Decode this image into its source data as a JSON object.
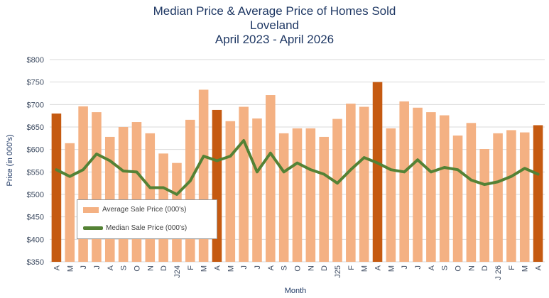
{
  "chart_data": {
    "type": "bar",
    "title": [
      "Median Price & Average Price of Homes Sold",
      "Loveland",
      "April 2023 - April 2026"
    ],
    "xlabel": "Month",
    "ylabel": "Price (in 000's)",
    "ylim": [
      350,
      800
    ],
    "yticks": [
      "$350",
      "$400",
      "$450",
      "$500",
      "$550",
      "$600",
      "$650",
      "$700",
      "$750",
      "$800"
    ],
    "ytick_values": [
      350,
      400,
      450,
      500,
      550,
      600,
      650,
      700,
      750,
      800
    ],
    "grid": true,
    "legend_position": "bottom-left",
    "categories": [
      "A",
      "M",
      "J",
      "J",
      "A",
      "S",
      "O",
      "N",
      "D",
      "J24",
      "F",
      "M",
      "A",
      "M",
      "J",
      "J",
      "A",
      "S",
      "O",
      "N",
      "D",
      "J25",
      "F",
      "M",
      "A",
      "M",
      "J",
      "J",
      "A",
      "S",
      "O",
      "N",
      "D",
      "J 26",
      "F",
      "M",
      "A"
    ],
    "series": [
      {
        "name": "Average Sale Price (000's)",
        "kind": "bar",
        "values": [
          680,
          614,
          696,
          683,
          628,
          650,
          661,
          636,
          591,
          570,
          666,
          733,
          688,
          663,
          695,
          669,
          721,
          636,
          647,
          647,
          628,
          668,
          702,
          695,
          750,
          647,
          707,
          693,
          683,
          676,
          631,
          659,
          601,
          636,
          643,
          638,
          654
        ],
        "highlight_indices": [
          0,
          12,
          24,
          36
        ]
      },
      {
        "name": "Median Sale Price (000's)",
        "kind": "line",
        "values": [
          555,
          540,
          555,
          590,
          575,
          552,
          550,
          515,
          515,
          500,
          530,
          585,
          575,
          585,
          620,
          550,
          592,
          550,
          570,
          555,
          545,
          525,
          555,
          582,
          570,
          555,
          550,
          577,
          550,
          560,
          555,
          532,
          522,
          528,
          540,
          558,
          545
        ]
      }
    ],
    "colors": {
      "bar": "#f4b183",
      "bar_highlight": "#c55a11",
      "line": "#548235",
      "grid": "#d9d9d9",
      "title": "#1f3864"
    }
  }
}
